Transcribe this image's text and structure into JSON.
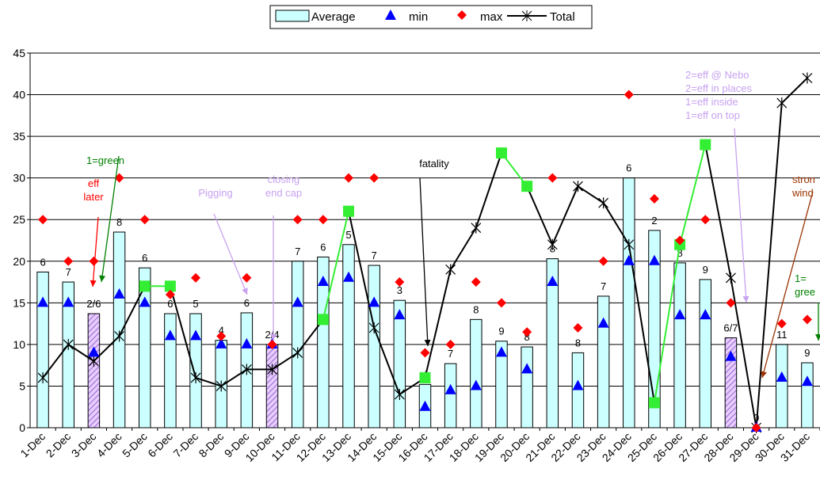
{
  "chart_data": {
    "type": "bar",
    "categories": [
      "1-Dec",
      "2-Dec",
      "3-Dec",
      "4-Dec",
      "5-Dec",
      "6-Dec",
      "7-Dec",
      "8-Dec",
      "9-Dec",
      "10-Dec",
      "11-Dec",
      "12-Dec",
      "13-Dec",
      "14-Dec",
      "15-Dec",
      "16-Dec",
      "17-Dec",
      "18-Dec",
      "19-Dec",
      "20-Dec",
      "21-Dec",
      "22-Dec",
      "23-Dec",
      "24-Dec",
      "25-Dec",
      "26-Dec",
      "27-Dec",
      "28-Dec",
      "29-Dec",
      "30-Dec",
      "31-Dec"
    ],
    "ylim": [
      0,
      45
    ],
    "yticks": [
      0,
      5,
      10,
      15,
      20,
      25,
      30,
      35,
      40,
      45
    ],
    "grid": true,
    "legend_position": "top",
    "series": [
      {
        "name": "Average",
        "kind": "bar",
        "values": [
          18.7,
          17.5,
          13.7,
          23.5,
          19.2,
          13.7,
          13.7,
          10.5,
          13.8,
          10,
          20,
          20.5,
          22,
          19.5,
          15.3,
          5.2,
          7.7,
          13,
          10.4,
          9.7,
          20.3,
          9,
          15.8,
          30,
          23.7,
          19.8,
          17.8,
          10.8,
          0,
          10,
          7.8
        ]
      },
      {
        "name": "min",
        "kind": "marker",
        "values": [
          15,
          15,
          9,
          16,
          15,
          11,
          11,
          10,
          10,
          10,
          15,
          17.5,
          18,
          15,
          13.5,
          2.5,
          4.5,
          5,
          9,
          7,
          17.5,
          5,
          12.5,
          20,
          20,
          13.5,
          13.5,
          8.5,
          0,
          6,
          5.5
        ]
      },
      {
        "name": "max",
        "kind": "marker",
        "values": [
          25,
          20,
          20,
          30,
          25,
          16,
          18,
          11,
          18,
          10,
          25,
          25,
          30,
          30,
          17.5,
          9,
          10,
          17.5,
          15,
          11.5,
          30,
          12,
          20,
          40,
          27.5,
          22.5,
          25,
          15,
          0,
          12.5,
          13
        ]
      },
      {
        "name": "Total",
        "kind": "line",
        "values": [
          6,
          10,
          8,
          11,
          17,
          17,
          6,
          5,
          7,
          7,
          9,
          13,
          26,
          12,
          4,
          6,
          19,
          24,
          33,
          29,
          22,
          29,
          27,
          22,
          3,
          22,
          34,
          18,
          0,
          39,
          42
        ]
      }
    ],
    "hatched_bars": [
      "3-Dec",
      "10-Dec",
      "28-Dec"
    ],
    "highlighted_total_points": [
      "5-Dec",
      "6-Dec",
      "12-Dec",
      "13-Dec",
      "16-Dec",
      "19-Dec",
      "20-Dec",
      "25-Dec",
      "26-Dec",
      "27-Dec"
    ],
    "bar_labels": [
      "6",
      "7",
      "2/6",
      "8",
      "6",
      "6",
      "5",
      "4",
      "6",
      "2/4",
      "7",
      "6",
      "5",
      "7",
      "3",
      "4",
      "7",
      "8",
      "9",
      "8",
      "8",
      "8",
      "7",
      "6",
      "2",
      "8",
      "9",
      "6/7",
      "0",
      "11",
      "9"
    ],
    "annotations": [
      {
        "id": "green1",
        "lines": [
          "1=green"
        ],
        "color": "#008000"
      },
      {
        "id": "efflater",
        "lines": [
          "eff",
          "later"
        ],
        "color": "#ff0000"
      },
      {
        "id": "pigging",
        "lines": [
          "Pigging"
        ],
        "color": "#c8a2f0"
      },
      {
        "id": "closing",
        "lines": [
          "closing",
          "end cap"
        ],
        "color": "#c8a2f0"
      },
      {
        "id": "fatality",
        "lines": [
          "fatality"
        ],
        "color": "#000000"
      },
      {
        "id": "nebo",
        "lines": [
          "2=eff @ Nebo",
          "2=eff in places",
          "1=eff inside",
          "1=eff on top"
        ],
        "color": "#c8a2f0"
      },
      {
        "id": "wind",
        "lines": [
          "stron",
          "wind"
        ],
        "color": "#993300"
      },
      {
        "id": "green2",
        "lines": [
          "1=",
          "gree"
        ],
        "color": "#008000"
      }
    ]
  }
}
